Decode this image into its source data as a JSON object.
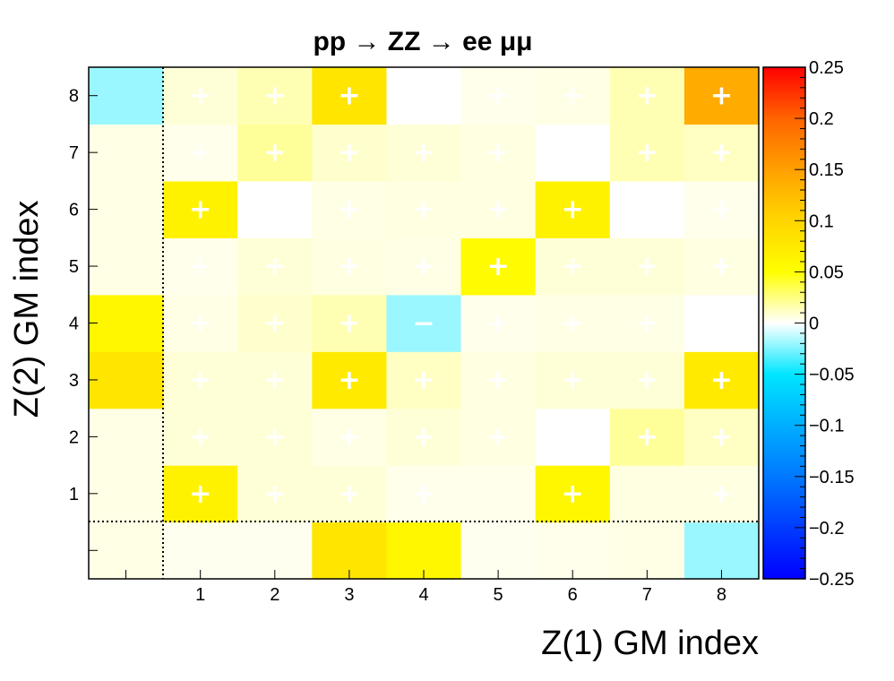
{
  "chart_data": {
    "type": "heatmap",
    "title": "pp → ZZ → ee μμ",
    "xlabel": "Z(1) GM index",
    "ylabel": "Z(2) GM index",
    "x_categories": [
      "",
      "1",
      "2",
      "3",
      "4",
      "5",
      "6",
      "7",
      "8"
    ],
    "y_categories": [
      "",
      "1",
      "2",
      "3",
      "4",
      "5",
      "6",
      "7",
      "8"
    ],
    "zlim": [
      -0.25,
      0.25
    ],
    "colorbar_ticks": [
      "0.25",
      "0.2",
      "0.15",
      "0.1",
      "0.05",
      "0",
      "−0.05",
      "−0.1",
      "−0.15",
      "−0.2",
      "−0.25"
    ],
    "colorbar_tick_values": [
      0.25,
      0.2,
      0.15,
      0.1,
      0.05,
      0,
      -0.05,
      -0.1,
      -0.15,
      -0.2,
      -0.25
    ],
    "divider_lines": "dotted lines separate the first (unlabeled) row and column",
    "values": [
      [
        0.005,
        0.003,
        0.003,
        0.08,
        0.06,
        0.003,
        0.004,
        0.005,
        -0.02
      ],
      [
        0.005,
        0.065,
        0.008,
        0.008,
        0.004,
        0.004,
        0.06,
        0.006,
        0.006
      ],
      [
        0.005,
        0.008,
        0.008,
        0.005,
        0.008,
        0.006,
        0.0,
        0.02,
        0.012
      ],
      [
        0.08,
        0.008,
        0.008,
        0.075,
        0.012,
        0.006,
        0.008,
        0.008,
        0.075
      ],
      [
        0.06,
        0.005,
        0.01,
        0.015,
        -0.02,
        0.004,
        0.005,
        0.005,
        0.0
      ],
      [
        0.005,
        0.004,
        0.008,
        0.006,
        0.005,
        0.055,
        0.008,
        0.008,
        0.006
      ],
      [
        0.005,
        0.065,
        0.0,
        0.005,
        0.006,
        0.006,
        0.065,
        0.0,
        0.004
      ],
      [
        0.005,
        0.004,
        0.02,
        0.01,
        0.008,
        0.006,
        0.0,
        0.015,
        0.012
      ],
      [
        -0.02,
        0.008,
        0.015,
        0.08,
        0.0,
        0.004,
        0.005,
        0.015,
        0.14
      ]
    ],
    "signs": [
      [
        "",
        "",
        "",
        "",
        "",
        "",
        "",
        "",
        ""
      ],
      [
        "",
        "+",
        "+",
        "+",
        "+",
        "",
        "+",
        "",
        "+"
      ],
      [
        "",
        "+",
        "+",
        "+",
        "+",
        "+",
        "",
        "+",
        "+"
      ],
      [
        "",
        "+",
        "+",
        "+",
        "+",
        "+",
        "+",
        "+",
        "+"
      ],
      [
        "",
        "+",
        "+",
        "+",
        "−",
        "+",
        "+",
        "+",
        ""
      ],
      [
        "",
        "+",
        "+",
        "+",
        "+",
        "+",
        "+",
        "+",
        "+"
      ],
      [
        "",
        "+",
        "",
        "+",
        "+",
        "+",
        "+",
        "",
        "+"
      ],
      [
        "",
        "+",
        "+",
        "+",
        "+",
        "+",
        "",
        "+",
        "+"
      ],
      [
        "",
        "+",
        "+",
        "+",
        "",
        "+",
        "+",
        "+",
        "+"
      ]
    ]
  }
}
